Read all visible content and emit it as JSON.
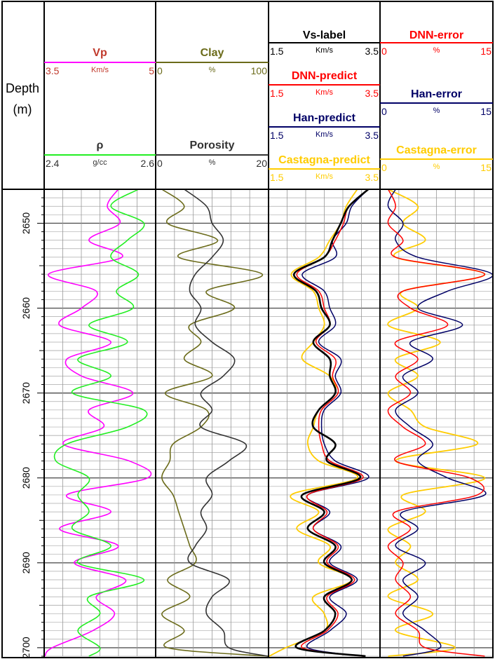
{
  "chart_data": {
    "type": "line",
    "title": "",
    "depth_axis": {
      "label_line1": "Depth",
      "label_line2": "(m)",
      "range": [
        2646,
        2701
      ],
      "ticks": [
        "2650",
        "2660",
        "2670",
        "2680",
        "2690",
        "2700"
      ],
      "tick_values": [
        2650,
        2660,
        2670,
        2680,
        2690,
        2700
      ]
    },
    "tracks": [
      {
        "id": "track1",
        "headers": [
          {
            "name": "Vp",
            "min_label": "3.5",
            "max_label": "5",
            "unit": "Km/s",
            "color": "#ff00ff",
            "text_color": "#c0392b",
            "range": [
              3.5,
              5
            ]
          },
          {
            "name": "ρ",
            "min_label": "2.4",
            "max_label": "2.6",
            "unit": "g/cc",
            "color": "#22ee22",
            "text_color": "#333333",
            "range": [
              2.4,
              2.6
            ]
          }
        ],
        "series": [
          {
            "name": "Vp",
            "color": "#ff00ff",
            "width": 1.6,
            "range": [
              3.5,
              5
            ],
            "depth": [
              2646,
              2648,
              2650,
              2652,
              2654,
              2656,
              2658,
              2660,
              2662,
              2664,
              2666,
              2668,
              2670,
              2672,
              2674,
              2676,
              2678,
              2680,
              2682,
              2684,
              2686,
              2688,
              2690,
              2692,
              2694,
              2696,
              2698,
              2700,
              2701
            ],
            "values": [
              4.5,
              4.35,
              4.52,
              4.1,
              4.55,
              3.55,
              4.2,
              4.0,
              3.7,
              4.4,
              3.8,
              4.0,
              4.7,
              4.1,
              4.3,
              3.75,
              4.65,
              4.9,
              3.8,
              4.4,
              3.7,
              4.5,
              3.9,
              4.6,
              4.2,
              4.45,
              4.15,
              3.6,
              3.5
            ]
          },
          {
            "name": "ρ",
            "color": "#22ee22",
            "width": 1.6,
            "range": [
              2.4,
              2.6
            ],
            "depth": [
              2646,
              2648,
              2650,
              2652,
              2654,
              2656,
              2658,
              2660,
              2662,
              2664,
              2666,
              2668,
              2670,
              2672,
              2674,
              2676,
              2678,
              2680,
              2682,
              2684,
              2686,
              2688,
              2690,
              2692,
              2694,
              2696,
              2698,
              2700,
              2701
            ],
            "values": [
              2.57,
              2.52,
              2.58,
              2.55,
              2.52,
              2.57,
              2.53,
              2.56,
              2.48,
              2.55,
              2.46,
              2.52,
              2.45,
              2.58,
              2.55,
              2.44,
              2.42,
              2.48,
              2.46,
              2.48,
              2.45,
              2.52,
              2.46,
              2.58,
              2.48,
              2.5,
              2.46,
              2.5,
              2.48
            ]
          }
        ]
      },
      {
        "id": "track2",
        "headers": [
          {
            "name": "Clay",
            "min_label": "0",
            "max_label": "100",
            "unit": "%",
            "color": "#6b6b1a",
            "text_color": "#6b6b1a",
            "range": [
              0,
              100
            ]
          },
          {
            "name": "Porosity",
            "min_label": "0",
            "max_label": "20",
            "unit": "%",
            "color": "#333333",
            "text_color": "#333333",
            "range": [
              0,
              20
            ]
          }
        ],
        "series": [
          {
            "name": "Clay",
            "color": "#6b6b1a",
            "width": 1.6,
            "range": [
              0,
              100
            ],
            "depth": [
              2646,
              2648,
              2650,
              2652,
              2654,
              2656,
              2658,
              2660,
              2662,
              2664,
              2666,
              2668,
              2670,
              2672,
              2674,
              2676,
              2678,
              2680,
              2682,
              2684,
              2686,
              2688,
              2690,
              2692,
              2694,
              2696,
              2698,
              2700,
              2701
            ],
            "values": [
              5,
              25,
              10,
              55,
              20,
              95,
              45,
              70,
              30,
              40,
              25,
              50,
              8,
              45,
              40,
              15,
              12,
              5,
              15,
              20,
              25,
              30,
              35,
              10,
              30,
              5,
              25,
              10,
              100
            ]
          },
          {
            "name": "Porosity",
            "color": "#333333",
            "width": 1.6,
            "range": [
              0,
              20
            ],
            "depth": [
              2646,
              2648,
              2650,
              2652,
              2654,
              2656,
              2658,
              2660,
              2662,
              2664,
              2666,
              2668,
              2670,
              2672,
              2674,
              2676,
              2678,
              2680,
              2682,
              2684,
              2686,
              2688,
              2690,
              2692,
              2694,
              2696,
              2698,
              2700,
              2701
            ],
            "values": [
              5,
              9,
              10,
              12,
              10,
              7,
              6,
              8,
              7,
              10,
              14,
              12,
              8,
              10,
              8,
              16,
              13,
              9,
              10,
              8,
              9,
              7,
              6,
              13,
              10,
              9,
              12,
              13,
              20
            ]
          }
        ]
      },
      {
        "id": "track3",
        "headers": [
          {
            "name": "Vs-label",
            "min_label": "1.5",
            "max_label": "3.5",
            "unit": "Km/s",
            "color": "#000000",
            "text_color": "#000000",
            "range": [
              1.5,
              3.5
            ]
          },
          {
            "name": "DNN-predict",
            "min_label": "1.5",
            "max_label": "3.5",
            "unit": "Km/s",
            "color": "#ff0000",
            "text_color": "#ff0000",
            "range": [
              1.5,
              3.5
            ]
          },
          {
            "name": "Han-predict",
            "min_label": "1.5",
            "max_label": "3.5",
            "unit": "Km/s",
            "color": "#000066",
            "text_color": "#000066",
            "range": [
              1.5,
              3.5
            ]
          },
          {
            "name": "Castagna-predict",
            "min_label": "1.5",
            "max_label": "3.5",
            "unit": "Km/s",
            "color": "#ffcc00",
            "text_color": "#ffcc00",
            "range": [
              1.5,
              3.5
            ]
          }
        ],
        "series": [
          {
            "name": "Castagna-predict",
            "color": "#ffcc00",
            "width": 1.8,
            "range": [
              1.5,
              3.5
            ],
            "depth": [
              2646,
              2648,
              2650,
              2652,
              2654,
              2656,
              2658,
              2660,
              2662,
              2664,
              2666,
              2668,
              2670,
              2672,
              2674,
              2676,
              2678,
              2680,
              2682,
              2684,
              2686,
              2688,
              2690,
              2692,
              2694,
              2696,
              2698,
              2700,
              2701
            ],
            "values": [
              3.1,
              2.9,
              2.8,
              2.6,
              2.4,
              1.9,
              2.3,
              2.4,
              2.5,
              2.3,
              2.1,
              2.6,
              2.7,
              2.4,
              2.3,
              2.2,
              2.4,
              3.1,
              1.9,
              2.4,
              2.0,
              2.6,
              2.4,
              3.0,
              2.3,
              2.5,
              2.5,
              1.8,
              1.5
            ]
          },
          {
            "name": "Han-predict",
            "color": "#000066",
            "width": 1.5,
            "range": [
              1.5,
              3.5
            ],
            "depth": [
              2646,
              2648,
              2650,
              2652,
              2654,
              2656,
              2658,
              2660,
              2662,
              2664,
              2666,
              2668,
              2670,
              2672,
              2674,
              2676,
              2678,
              2680,
              2682,
              2684,
              2686,
              2688,
              2690,
              2692,
              2694,
              2696,
              2698,
              2700,
              2701
            ],
            "values": [
              3.3,
              3.0,
              2.9,
              2.65,
              2.7,
              2.1,
              2.5,
              2.6,
              2.7,
              2.4,
              2.8,
              2.7,
              2.8,
              2.5,
              2.45,
              2.5,
              2.7,
              3.3,
              2.2,
              2.6,
              2.3,
              2.8,
              2.6,
              3.1,
              2.6,
              2.9,
              2.6,
              2.2,
              3.2
            ]
          },
          {
            "name": "DNN-predict",
            "color": "#ff0000",
            "width": 1.5,
            "range": [
              1.5,
              3.5
            ],
            "depth": [
              2646,
              2648,
              2650,
              2652,
              2654,
              2656,
              2658,
              2660,
              2662,
              2664,
              2666,
              2668,
              2670,
              2672,
              2674,
              2676,
              2678,
              2680,
              2682,
              2684,
              2686,
              2688,
              2690,
              2692,
              2694,
              2696,
              2698,
              2700,
              2701
            ],
            "values": [
              3.3,
              2.95,
              2.85,
              2.7,
              2.5,
              2.0,
              2.4,
              2.5,
              2.6,
              2.35,
              2.7,
              2.65,
              2.75,
              2.45,
              2.4,
              2.45,
              2.6,
              3.2,
              2.2,
              2.55,
              2.3,
              2.75,
              2.55,
              3.05,
              2.55,
              2.75,
              2.55,
              2.1,
              3.2
            ]
          },
          {
            "name": "Vs-label",
            "color": "#000000",
            "width": 2.6,
            "range": [
              1.5,
              3.5
            ],
            "depth": [
              2646,
              2648,
              2650,
              2652,
              2654,
              2656,
              2658,
              2660,
              2662,
              2664,
              2666,
              2668,
              2670,
              2672,
              2674,
              2676,
              2678,
              2680,
              2682,
              2684,
              2686,
              2688,
              2690,
              2692,
              2694,
              2696,
              2698,
              2700,
              2701
            ],
            "values": [
              3.3,
              2.95,
              2.8,
              2.65,
              2.5,
              1.95,
              2.35,
              2.45,
              2.6,
              2.3,
              2.6,
              2.6,
              2.7,
              2.4,
              2.3,
              2.7,
              2.55,
              3.15,
              2.1,
              2.5,
              2.2,
              2.7,
              2.5,
              3.0,
              2.5,
              2.7,
              2.5,
              2.0,
              3.25
            ]
          }
        ]
      },
      {
        "id": "track4",
        "headers": [
          {
            "name": "DNN-error",
            "min_label": "0",
            "max_label": "15",
            "unit": "%",
            "color": "#ff0000",
            "text_color": "#ff0000",
            "range": [
              0,
              15
            ]
          },
          {
            "name": "Han-error",
            "min_label": "0",
            "max_label": "15",
            "unit": "%",
            "color": "#000066",
            "text_color": "#000066",
            "range": [
              0,
              15
            ]
          },
          {
            "name": "Castagna-error",
            "min_label": "0",
            "max_label": "15",
            "unit": "%",
            "color": "#ffcc00",
            "text_color": "#ffcc00",
            "range": [
              0,
              15
            ]
          }
        ],
        "series": [
          {
            "name": "Castagna-error",
            "color": "#ffcc00",
            "width": 1.8,
            "range": [
              0,
              15
            ],
            "depth": [
              2646,
              2648,
              2650,
              2652,
              2654,
              2656,
              2658,
              2660,
              2662,
              2664,
              2666,
              2668,
              2670,
              2672,
              2674,
              2676,
              2678,
              2680,
              2682,
              2684,
              2686,
              2688,
              2690,
              2692,
              2694,
              2696,
              2698,
              2700,
              2701
            ],
            "values": [
              1,
              5,
              3,
              6,
              2,
              14,
              3,
              5,
              1,
              8,
              2,
              5,
              1,
              4,
              6,
              13,
              2,
              14,
              3,
              6,
              1,
              4,
              2,
              5,
              1,
              7,
              2,
              10,
              1
            ]
          },
          {
            "name": "Han-error",
            "color": "#000066",
            "width": 1.5,
            "range": [
              0,
              15
            ],
            "depth": [
              2646,
              2648,
              2650,
              2652,
              2654,
              2656,
              2658,
              2660,
              2662,
              2664,
              2666,
              2668,
              2670,
              2672,
              2674,
              2676,
              2678,
              2680,
              2682,
              2684,
              2686,
              2688,
              2690,
              2692,
              2694,
              2696,
              2698,
              2700,
              2701
            ],
            "values": [
              2,
              1,
              3,
              2,
              5,
              15,
              9,
              5,
              11,
              4,
              7,
              3,
              5,
              2,
              4,
              7,
              5,
              9,
              14,
              3,
              5,
              2,
              6,
              3,
              5,
              3,
              6,
              8,
              3
            ]
          },
          {
            "name": "DNN-error",
            "color": "#ff0000",
            "width": 1.5,
            "range": [
              0,
              15
            ],
            "depth": [
              2646,
              2648,
              2650,
              2652,
              2654,
              2656,
              2658,
              2660,
              2662,
              2664,
              2666,
              2668,
              2670,
              2672,
              2674,
              2676,
              2678,
              2680,
              2682,
              2684,
              2686,
              2688,
              2690,
              2692,
              2694,
              2696,
              2698,
              2700,
              2701
            ],
            "values": [
              1,
              2,
              1,
              3,
              2,
              14,
              3,
              4,
              9,
              2,
              5,
              2,
              4,
              1,
              3,
              6,
              2,
              12,
              13,
              2,
              4,
              1,
              3,
              2,
              4,
              2,
              5,
              6,
              14
            ]
          }
        ]
      }
    ]
  }
}
